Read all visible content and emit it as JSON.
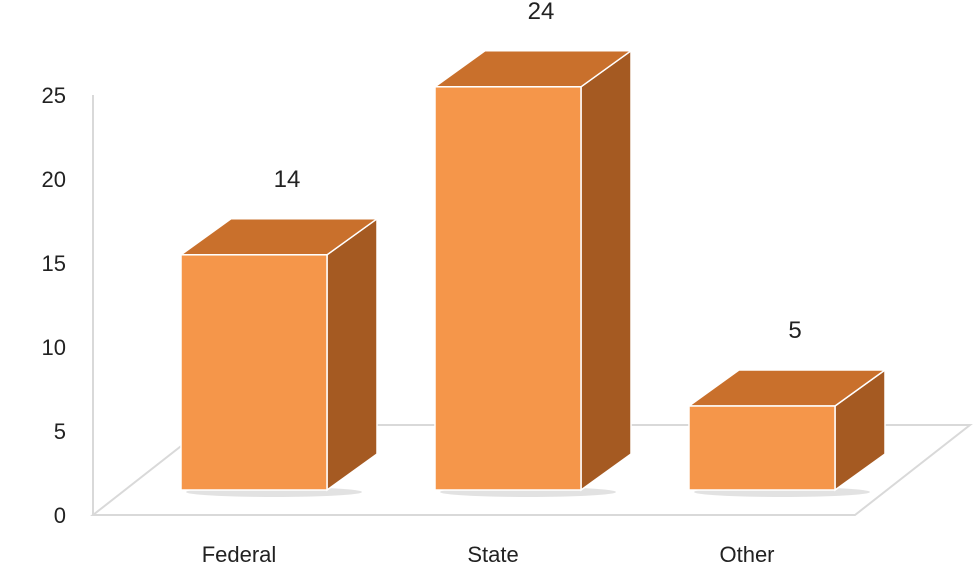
{
  "chart_data": {
    "type": "bar",
    "categories": [
      "Federal",
      "State",
      "Other"
    ],
    "values": [
      14,
      24,
      5
    ],
    "data_labels": [
      "14",
      "24",
      "5"
    ],
    "y_ticks": [
      "0",
      "5",
      "10",
      "15",
      "20",
      "25"
    ],
    "ylim": [
      0,
      25
    ],
    "title": "",
    "xlabel": "",
    "ylabel": "",
    "grid": false,
    "legend": "none",
    "style": "3d-column",
    "colors": {
      "bar_front": "#F5964A",
      "bar_top": "#C9702C",
      "bar_side": "#A55A22",
      "floor": "#ffffff",
      "axis_line": "#d9d9d9"
    }
  }
}
